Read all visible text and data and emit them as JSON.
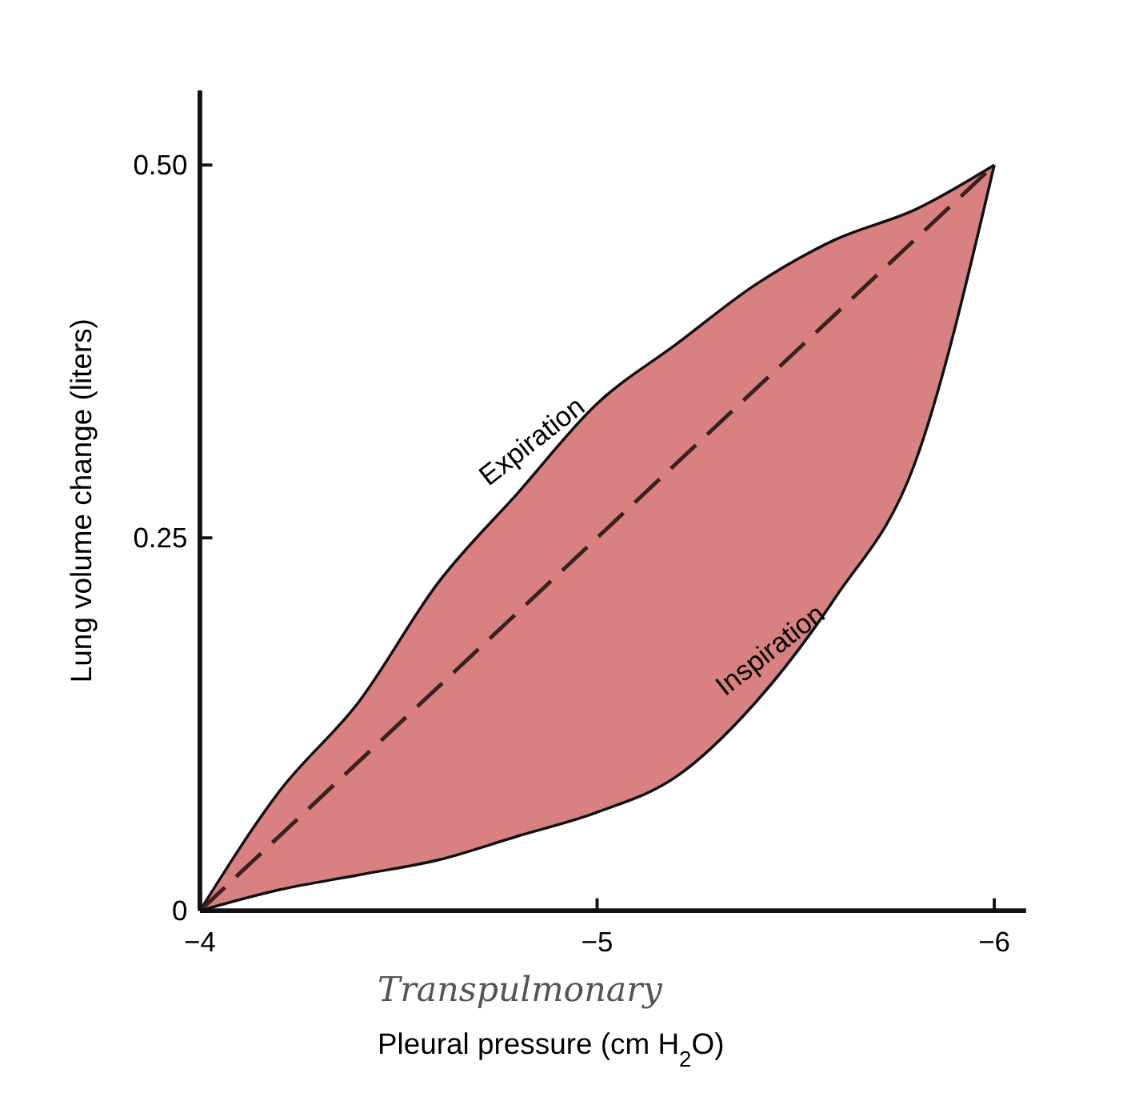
{
  "chart_data": {
    "type": "line",
    "xlabel": "Pleural pressure (cm H$_{2}$O)",
    "ylabel": "Lung volume change (liters)",
    "x": [
      -4,
      -4.2,
      -4.4,
      -4.6,
      -4.8,
      -5,
      -5.2,
      -5.4,
      -5.6,
      -5.8,
      -6
    ],
    "xlim": [
      -4,
      -6.08
    ],
    "xticks": [
      {
        "value": -4,
        "label": "−4"
      },
      {
        "value": -5,
        "label": "−5"
      },
      {
        "value": -6,
        "label": "−6"
      }
    ],
    "ylim": [
      0,
      0.55
    ],
    "yticks": [
      0,
      0.25,
      {
        "value": 0.5,
        "label": "0.50"
      }
    ],
    "series": [
      {
        "color": "#3a2020",
        "line_style": "dashed",
        "values": [
          0,
          0.05,
          0.1,
          0.15,
          0.2,
          0.25,
          0.3,
          0.35,
          0.4,
          0.45,
          0.5
        ],
        "upper": [
          0,
          0.08,
          0.14,
          0.22,
          0.28,
          0.34,
          0.38,
          0.42,
          0.45,
          0.47,
          0.5
        ],
        "lower": [
          0,
          0.014,
          0.024,
          0.034,
          0.05,
          0.066,
          0.09,
          0.14,
          0.21,
          0.3,
          0.5
        ]
      }
    ],
    "annotations": [
      "Expiration",
      "Inspiration",
      "Transpulmonary"
    ],
    "grid": false
  }
}
